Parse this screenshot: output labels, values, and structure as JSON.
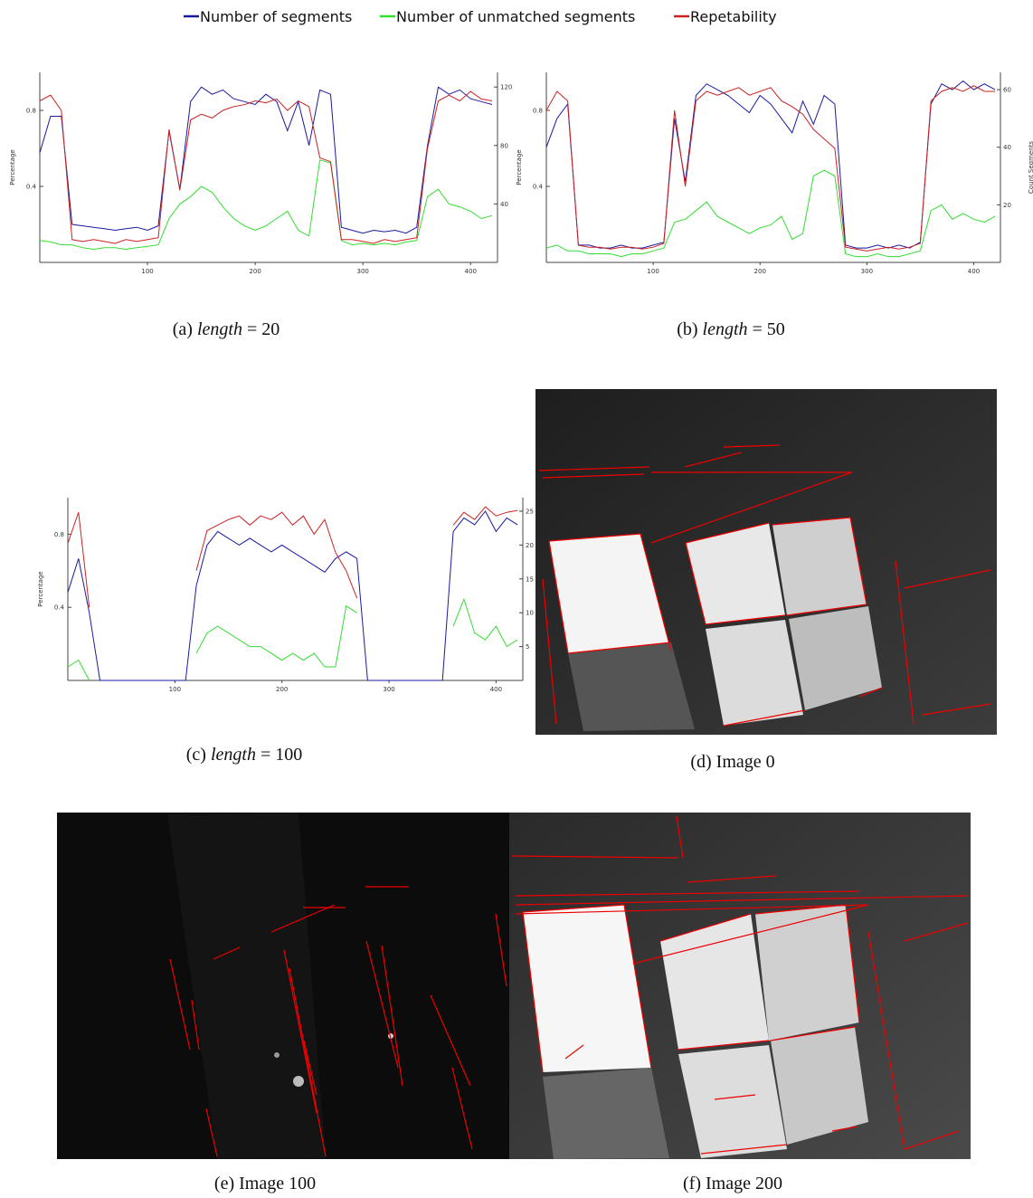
{
  "chart_data": [
    {
      "type": "line",
      "xlim": [
        0,
        425
      ],
      "xticks": [
        100,
        200,
        300,
        400
      ],
      "ylim": [
        0,
        1
      ],
      "yticks": [
        0.4,
        0.8
      ],
      "y2lim": [
        0,
        130
      ],
      "y2ticks": [
        40,
        80,
        120
      ],
      "ylabel": "Percentage",
      "caption": {
        "tag": "(a)",
        "var": "length",
        "rest": "= 20"
      },
      "x": [
        0,
        10,
        20,
        30,
        40,
        50,
        60,
        70,
        80,
        90,
        100,
        110,
        120,
        130,
        140,
        150,
        160,
        170,
        180,
        190,
        200,
        210,
        220,
        230,
        240,
        250,
        260,
        270,
        280,
        290,
        300,
        310,
        320,
        330,
        340,
        350,
        360,
        370,
        380,
        390,
        400,
        410,
        420
      ],
      "series": [
        {
          "name": "Number of segments",
          "color": "#1a1aa0",
          "axis": "y2",
          "values": [
            75,
            100,
            100,
            26,
            25,
            24,
            23,
            22,
            23,
            24,
            22,
            25,
            90,
            50,
            110,
            120,
            115,
            118,
            112,
            110,
            108,
            115,
            110,
            90,
            110,
            80,
            118,
            115,
            24,
            22,
            20,
            22,
            21,
            22,
            20,
            24,
            80,
            120,
            115,
            118,
            112,
            110,
            108
          ]
        },
        {
          "name": "Number of unmatched segments",
          "color": "#33dd33",
          "axis": "y2",
          "values": [
            15,
            14,
            12,
            12,
            10,
            9,
            10,
            10,
            9,
            10,
            11,
            12,
            30,
            40,
            45,
            52,
            48,
            38,
            30,
            25,
            22,
            25,
            30,
            35,
            22,
            18,
            70,
            68,
            15,
            12,
            13,
            12,
            13,
            12,
            14,
            15,
            45,
            50,
            40,
            38,
            35,
            30,
            32
          ]
        },
        {
          "name": "Repetability",
          "color": "#cc2222",
          "values": [
            0.85,
            0.88,
            0.8,
            0.12,
            0.11,
            0.12,
            0.11,
            0.1,
            0.12,
            0.11,
            0.12,
            0.13,
            0.7,
            0.38,
            0.75,
            0.78,
            0.76,
            0.8,
            0.82,
            0.83,
            0.85,
            0.84,
            0.86,
            0.8,
            0.85,
            0.82,
            0.55,
            0.53,
            0.12,
            0.12,
            0.11,
            0.1,
            0.12,
            0.11,
            0.12,
            0.13,
            0.6,
            0.85,
            0.88,
            0.85,
            0.9,
            0.86,
            0.85
          ]
        }
      ]
    },
    {
      "type": "line",
      "xlim": [
        0,
        425
      ],
      "xticks": [
        100,
        200,
        300,
        400
      ],
      "ylim": [
        0,
        1
      ],
      "yticks": [
        0.4,
        0.8
      ],
      "y2lim": [
        0,
        66
      ],
      "y2ticks": [
        20,
        40,
        60
      ],
      "ylabel": "Percentage",
      "y2label": "Count Segments",
      "caption": {
        "tag": "(b)",
        "var": "length",
        "rest": "= 50"
      },
      "x": [
        0,
        10,
        20,
        30,
        40,
        50,
        60,
        70,
        80,
        90,
        100,
        110,
        120,
        130,
        140,
        150,
        160,
        170,
        180,
        190,
        200,
        210,
        220,
        230,
        240,
        250,
        260,
        270,
        280,
        290,
        300,
        310,
        320,
        330,
        340,
        350,
        360,
        370,
        380,
        390,
        400,
        410,
        420
      ],
      "series": [
        {
          "name": "Number of segments",
          "color": "#1a1aa0",
          "axis": "y2",
          "values": [
            40,
            50,
            55,
            6,
            6,
            5,
            5,
            6,
            5,
            5,
            6,
            7,
            50,
            28,
            58,
            62,
            60,
            58,
            55,
            52,
            58,
            55,
            50,
            45,
            56,
            48,
            58,
            55,
            6,
            5,
            5,
            6,
            5,
            6,
            5,
            7,
            55,
            62,
            60,
            63,
            60,
            62,
            60
          ]
        },
        {
          "name": "Number of unmatched segments",
          "color": "#33dd33",
          "axis": "y2",
          "values": [
            5,
            6,
            4,
            4,
            3,
            3,
            3,
            2,
            3,
            3,
            4,
            5,
            14,
            15,
            18,
            21,
            16,
            14,
            12,
            10,
            12,
            13,
            16,
            8,
            10,
            30,
            32,
            30,
            3,
            2,
            2,
            3,
            2,
            2,
            3,
            4,
            18,
            20,
            15,
            17,
            15,
            14,
            16
          ]
        },
        {
          "name": "Repetability",
          "color": "#cc2222",
          "values": [
            0.8,
            0.9,
            0.85,
            0.09,
            0.08,
            0.08,
            0.07,
            0.08,
            0.08,
            0.07,
            0.08,
            0.1,
            0.8,
            0.4,
            0.85,
            0.9,
            0.88,
            0.9,
            0.92,
            0.88,
            0.9,
            0.92,
            0.85,
            0.82,
            0.78,
            0.7,
            0.65,
            0.6,
            0.08,
            0.07,
            0.06,
            0.07,
            0.08,
            0.07,
            0.08,
            0.1,
            0.85,
            0.9,
            0.92,
            0.9,
            0.93,
            0.9,
            0.9
          ]
        }
      ]
    },
    {
      "type": "line",
      "xlim": [
        0,
        425
      ],
      "xticks": [
        100,
        200,
        300,
        400
      ],
      "ylim": [
        0,
        1
      ],
      "yticks": [
        0.4,
        0.8
      ],
      "y2lim": [
        0,
        27
      ],
      "y2ticks": [
        5,
        10,
        15,
        20,
        25
      ],
      "ylabel": "Percentage",
      "caption": {
        "tag": "(c)",
        "var": "length",
        "rest": "= 100"
      },
      "x": [
        0,
        10,
        20,
        30,
        40,
        50,
        60,
        70,
        80,
        90,
        100,
        110,
        120,
        130,
        140,
        150,
        160,
        170,
        180,
        190,
        200,
        210,
        220,
        230,
        240,
        250,
        260,
        270,
        280,
        290,
        300,
        310,
        320,
        330,
        340,
        350,
        360,
        370,
        380,
        390,
        400,
        410,
        420
      ],
      "series": [
        {
          "name": "Number of segments",
          "color": "#1a1aa0",
          "axis": "y2",
          "values": [
            13,
            18,
            10,
            0,
            0,
            0,
            0,
            0,
            0,
            0,
            0,
            0,
            14,
            20,
            22,
            21,
            20,
            21,
            20,
            19,
            20,
            19,
            18,
            17,
            16,
            18,
            19,
            18,
            0,
            0,
            0,
            0,
            0,
            0,
            0,
            0,
            22,
            24,
            23,
            25,
            22,
            24,
            23
          ]
        },
        {
          "name": "Number of unmatched segments",
          "color": "#33dd33",
          "axis": "y2",
          "values": [
            2,
            3,
            0,
            null,
            null,
            null,
            null,
            null,
            null,
            null,
            null,
            null,
            4,
            7,
            8,
            7,
            6,
            5,
            5,
            4,
            3,
            4,
            3,
            4,
            2,
            2,
            11,
            10,
            null,
            null,
            null,
            null,
            null,
            null,
            null,
            null,
            8,
            12,
            7,
            6,
            8,
            5,
            6
          ]
        },
        {
          "name": "Repetability",
          "color": "#cc2222",
          "values": [
            0.75,
            0.92,
            0.4,
            null,
            null,
            null,
            null,
            null,
            null,
            null,
            null,
            null,
            0.6,
            0.82,
            0.85,
            0.88,
            0.9,
            0.85,
            0.9,
            0.88,
            0.92,
            0.85,
            0.9,
            0.8,
            0.88,
            0.7,
            0.6,
            0.45,
            null,
            null,
            null,
            null,
            null,
            null,
            null,
            null,
            0.85,
            0.92,
            0.88,
            0.95,
            0.9,
            0.92,
            0.93
          ]
        }
      ]
    }
  ],
  "images": [
    {
      "caption": {
        "tag": "(d)",
        "text": "Image 0"
      }
    },
    {
      "caption": {
        "tag": "(e)",
        "text": "Image 100"
      }
    },
    {
      "caption": {
        "tag": "(f)",
        "text": "Image 200"
      }
    }
  ]
}
